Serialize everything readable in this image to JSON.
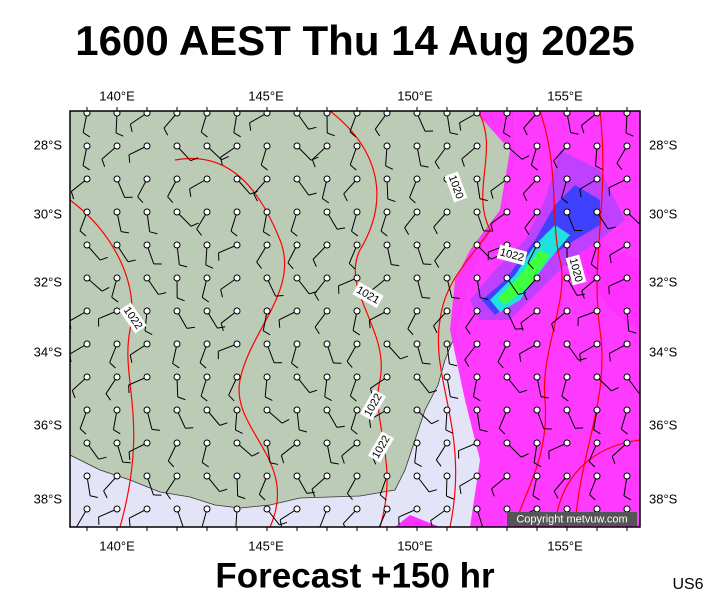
{
  "header": {
    "title": "1600 AEST Thu 14 Aug 2025"
  },
  "map": {
    "lon_labels": [
      "140°E",
      "145°E",
      "150°E",
      "155°E"
    ],
    "lat_labels": [
      "28°S",
      "30°S",
      "32°S",
      "34°S",
      "36°S",
      "38°S"
    ],
    "isobar_labels": [
      "1020",
      "1022",
      "1020",
      "1021",
      "1022",
      "1022",
      "1022"
    ],
    "copyright": "Copyright metvuw.com"
  },
  "footer": {
    "forecast": "Forecast +150 hr",
    "code": "US6"
  }
}
